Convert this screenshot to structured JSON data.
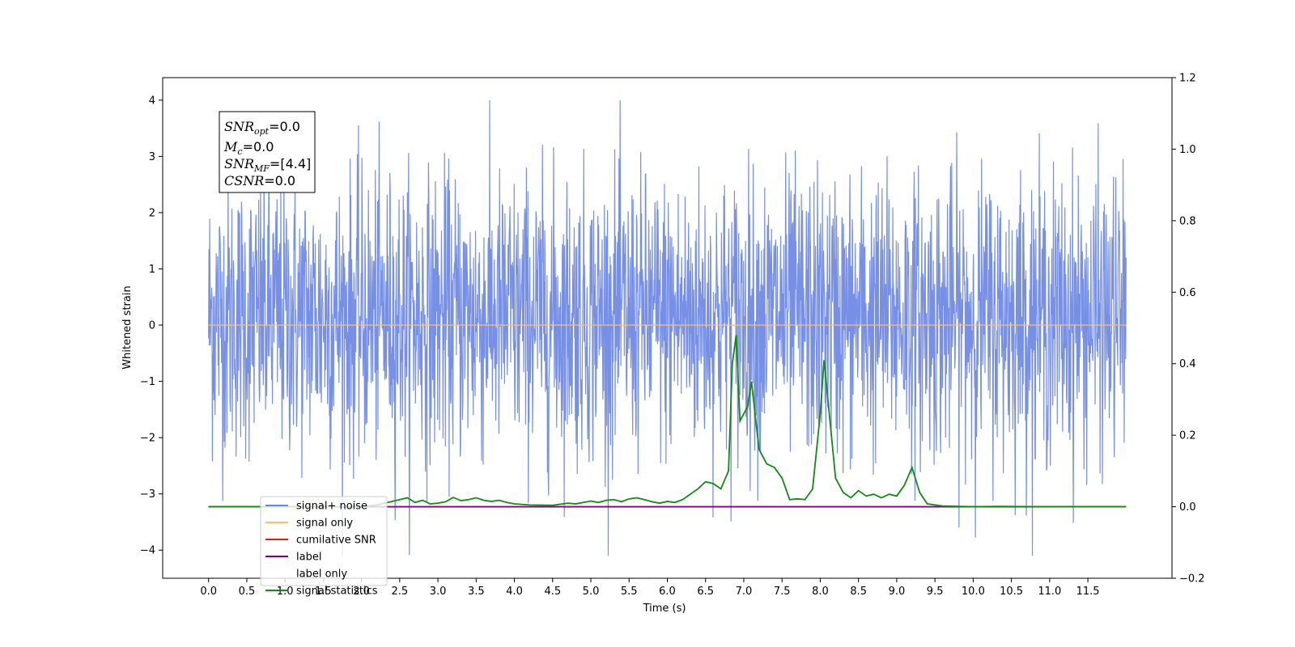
{
  "chart_data": {
    "type": "line",
    "xlabel": "Time (s)",
    "ylabel": "Whitened strain",
    "xlim": [
      -0.6,
      12.6
    ],
    "ylim": [
      -4.5,
      4.4
    ],
    "y2lim": [
      -0.2,
      1.2
    ],
    "x_ticks": [
      0.0,
      0.5,
      1.0,
      1.5,
      2.0,
      2.5,
      3.0,
      3.5,
      4.0,
      4.5,
      5.0,
      5.5,
      6.0,
      6.5,
      7.0,
      7.5,
      8.0,
      8.5,
      9.0,
      9.5,
      10.0,
      10.5,
      11.0,
      11.5
    ],
    "x_tick_labels": [
      "0.0",
      "0.5",
      "1.0",
      "1.5",
      "2.0",
      "2.5",
      "3.0",
      "3.5",
      "4.0",
      "4.5",
      "5.0",
      "5.5",
      "6.0",
      "6.5",
      "7.0",
      "7.5",
      "8.0",
      "8.5",
      "9.0",
      "9.5",
      "10.0",
      "10.5",
      "11.0",
      "11.5"
    ],
    "y_ticks": [
      -4,
      -3,
      -2,
      -1,
      0,
      1,
      2,
      3,
      4
    ],
    "y_tick_labels": [
      "−4",
      "−3",
      "−2",
      "−1",
      "0",
      "1",
      "2",
      "3",
      "4"
    ],
    "y2_ticks": [
      -0.2,
      0.0,
      0.2,
      0.4,
      0.6,
      0.8,
      1.0,
      1.2
    ],
    "y2_tick_labels": [
      "−0.2",
      "0.0",
      "0.2",
      "0.4",
      "0.6",
      "0.8",
      "1.0",
      "1.2"
    ],
    "grid": false,
    "legend_placement": "lower-left",
    "noise": {
      "x_start": 0.0,
      "x_end": 12.0,
      "sample_count": 2400,
      "envelope_typical": [
        -2.3,
        2.7
      ],
      "extremes": [
        -4.1,
        4.0
      ]
    },
    "series": [
      {
        "name": "signal+ noise",
        "color": "#6b87e3",
        "axis": "left",
        "kind": "noise"
      },
      {
        "name": "signal only",
        "color": "#ffbf66",
        "axis": "left",
        "x": [
          0.0,
          12.0
        ],
        "y": [
          0.0,
          0.0
        ]
      },
      {
        "name": "cumilative SNR",
        "color": "#e41a1c",
        "axis": "right",
        "x": [],
        "y": []
      },
      {
        "name": "label",
        "color": "#800080",
        "axis": "right",
        "x": [
          0.0,
          12.0
        ],
        "y": [
          0.0,
          0.0
        ]
      },
      {
        "name": "label only",
        "color": "#00000000",
        "axis": "right",
        "x": [],
        "y": []
      },
      {
        "name": "signal statistics",
        "color": "#138a13",
        "axis": "right",
        "x": [
          0.0,
          1.0,
          1.5,
          2.0,
          2.2,
          2.4,
          2.5,
          2.6,
          2.7,
          2.8,
          2.9,
          3.0,
          3.1,
          3.2,
          3.3,
          3.4,
          3.5,
          3.6,
          3.7,
          3.8,
          3.9,
          4.0,
          4.2,
          4.5,
          4.7,
          4.8,
          5.0,
          5.1,
          5.2,
          5.3,
          5.4,
          5.5,
          5.6,
          5.7,
          5.8,
          5.9,
          6.0,
          6.1,
          6.2,
          6.3,
          6.4,
          6.5,
          6.6,
          6.7,
          6.8,
          6.85,
          6.9,
          6.95,
          7.0,
          7.05,
          7.1,
          7.2,
          7.3,
          7.4,
          7.5,
          7.6,
          7.7,
          7.8,
          7.9,
          8.0,
          8.05,
          8.1,
          8.2,
          8.3,
          8.4,
          8.5,
          8.6,
          8.7,
          8.8,
          8.9,
          9.0,
          9.1,
          9.2,
          9.3,
          9.4,
          9.6,
          10.0,
          10.3,
          11.0,
          12.0
        ],
        "y": [
          0.0,
          0.0,
          0.0,
          0.0,
          0.005,
          0.015,
          0.02,
          0.025,
          0.012,
          0.018,
          0.008,
          0.01,
          0.014,
          0.026,
          0.017,
          0.02,
          0.025,
          0.018,
          0.015,
          0.018,
          0.012,
          0.008,
          0.005,
          0.004,
          0.01,
          0.008,
          0.016,
          0.012,
          0.018,
          0.02,
          0.014,
          0.022,
          0.025,
          0.02,
          0.014,
          0.01,
          0.015,
          0.012,
          0.02,
          0.035,
          0.05,
          0.07,
          0.065,
          0.05,
          0.1,
          0.4,
          0.48,
          0.24,
          0.26,
          0.28,
          0.35,
          0.16,
          0.12,
          0.11,
          0.08,
          0.02,
          0.022,
          0.02,
          0.05,
          0.26,
          0.41,
          0.3,
          0.08,
          0.04,
          0.025,
          0.045,
          0.03,
          0.035,
          0.025,
          0.035,
          0.03,
          0.06,
          0.11,
          0.04,
          0.008,
          0.002,
          0.0,
          0.001,
          0.0,
          0.0
        ]
      }
    ],
    "annotation": {
      "lines": [
        {
          "base": "SNR",
          "sub": "opt",
          "rest": "=0.0"
        },
        {
          "base": "M",
          "sub": "c",
          "rest": "=0.0"
        },
        {
          "base": "SNR",
          "sub": "MF",
          "rest": "=[4.4]"
        },
        {
          "base": "CSNR",
          "sub": "",
          "rest": "=0.0"
        }
      ]
    }
  }
}
